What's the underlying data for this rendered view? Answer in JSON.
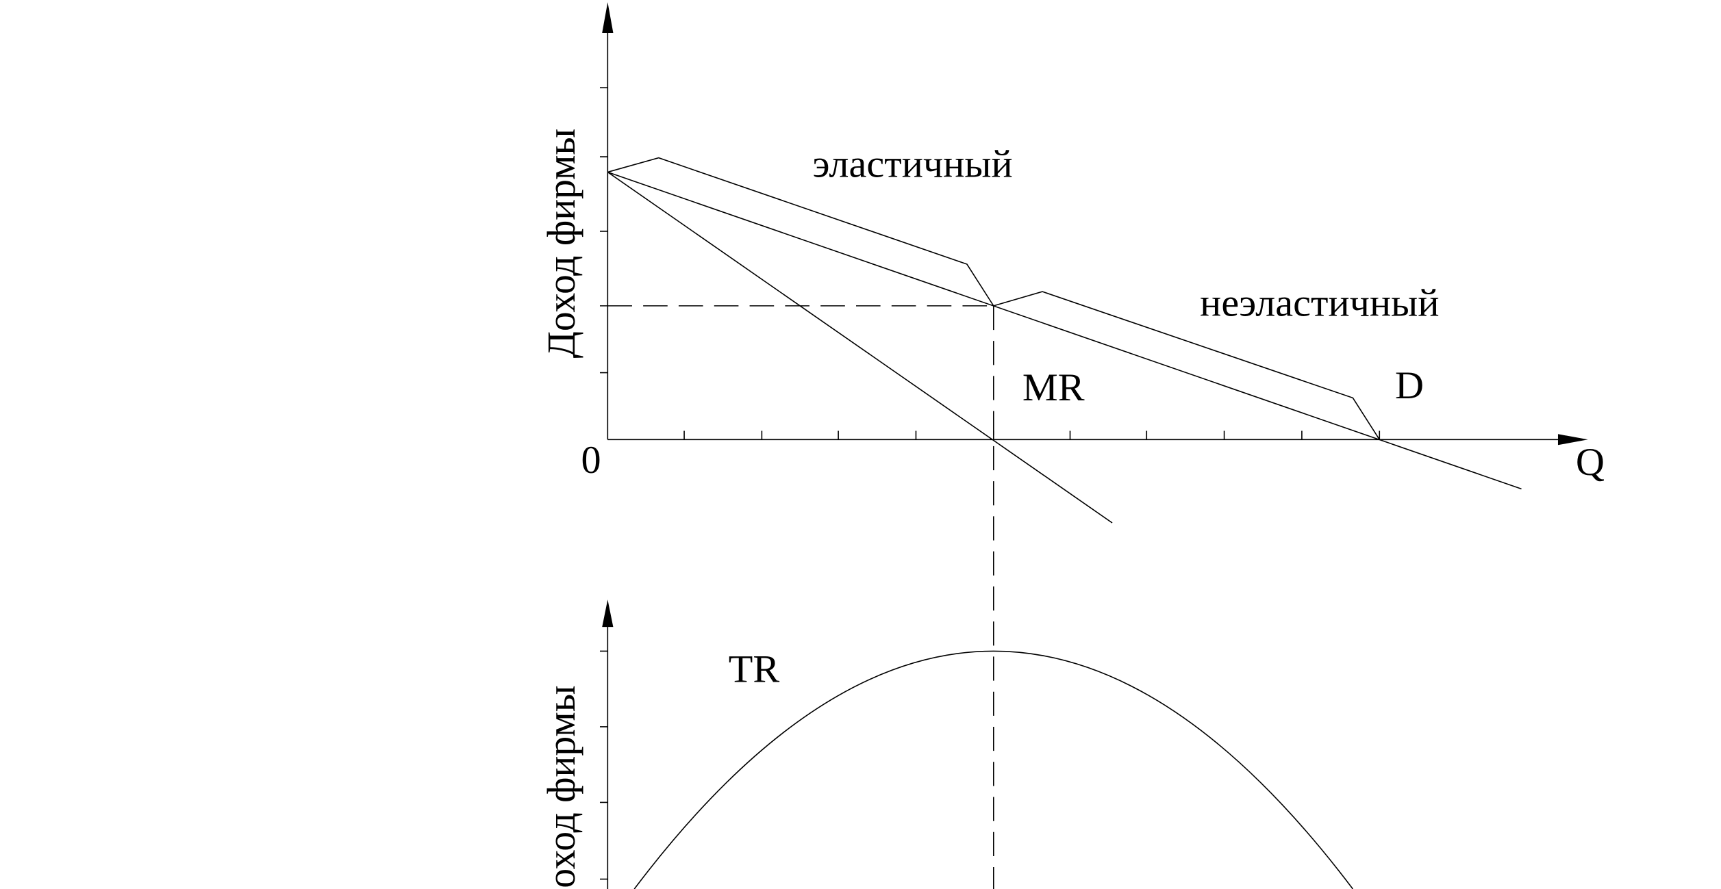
{
  "top_graph": {
    "y_axis_label": "Доход фирмы",
    "origin_label": "0",
    "x_axis_label": "Q",
    "elastic_label": "эластичный",
    "inelastic_label": "неэластичный",
    "mr_label": "MR",
    "d_label": "D"
  },
  "bottom_graph": {
    "y_axis_label": "Доход фирмы",
    "tr_label": "TR"
  }
}
